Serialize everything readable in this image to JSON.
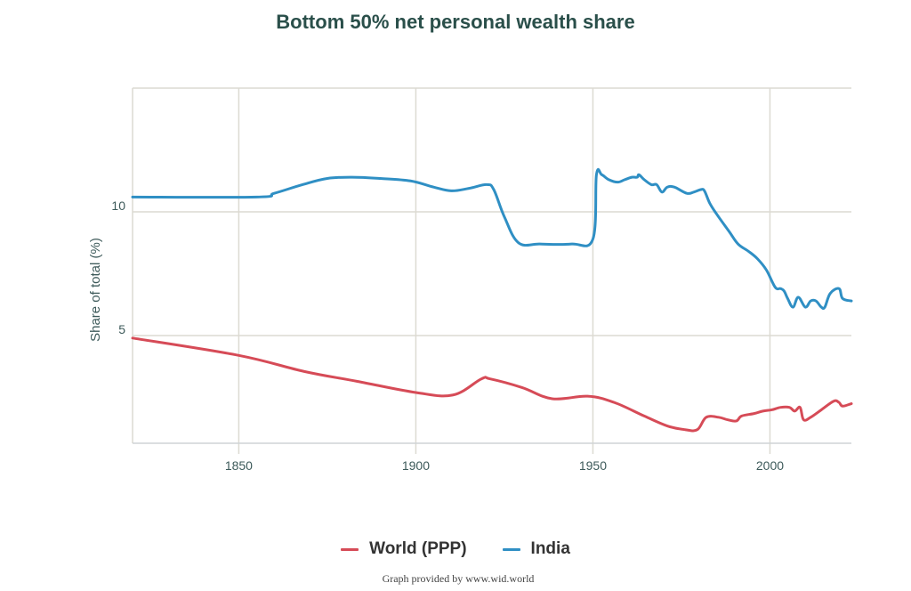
{
  "chart_data": {
    "type": "line",
    "title": "Bottom 50% net personal wealth share",
    "xlabel": "",
    "ylabel": "Share of total (%)",
    "xlim": [
      1820,
      2023
    ],
    "ylim": [
      0.65,
      15
    ],
    "x_ticks": [
      1850,
      1900,
      1950,
      2000
    ],
    "y_ticks": [
      5,
      10
    ],
    "y_gridlines": [
      5,
      10,
      15
    ],
    "grid": true,
    "legend_position": "bottom-center",
    "series": [
      {
        "name": "World (PPP)",
        "color": "#d64b57",
        "points": [
          [
            1820,
            4.9
          ],
          [
            1850,
            4.2
          ],
          [
            1868.5,
            3.55
          ],
          [
            1883.5,
            3.15
          ],
          [
            1900,
            2.7
          ],
          [
            1910.5,
            2.6
          ],
          [
            1918.5,
            3.25
          ],
          [
            1921,
            3.25
          ],
          [
            1930,
            2.9
          ],
          [
            1938.5,
            2.45
          ],
          [
            1948.5,
            2.55
          ],
          [
            1956,
            2.3
          ],
          [
            1964.5,
            1.75
          ],
          [
            1971,
            1.35
          ],
          [
            1976,
            1.2
          ],
          [
            1979.5,
            1.2
          ],
          [
            1982,
            1.7
          ],
          [
            1985.5,
            1.7
          ],
          [
            1988,
            1.6
          ],
          [
            1990.5,
            1.55
          ],
          [
            1992,
            1.75
          ],
          [
            1995.5,
            1.85
          ],
          [
            1998,
            1.95
          ],
          [
            2000.5,
            2.0
          ],
          [
            2003,
            2.1
          ],
          [
            2005.5,
            2.1
          ],
          [
            2007,
            1.95
          ],
          [
            2008.5,
            2.1
          ],
          [
            2009.5,
            1.6
          ],
          [
            2011.5,
            1.7
          ],
          [
            2014.5,
            2.0
          ],
          [
            2018,
            2.35
          ],
          [
            2019.5,
            2.3
          ],
          [
            2020.5,
            2.15
          ],
          [
            2023,
            2.25
          ]
        ]
      },
      {
        "name": "India",
        "color": "#2f8fc4",
        "points": [
          [
            1820,
            10.6
          ],
          [
            1855,
            10.6
          ],
          [
            1860,
            10.75
          ],
          [
            1868,
            11.1
          ],
          [
            1875,
            11.35
          ],
          [
            1882,
            11.4
          ],
          [
            1890,
            11.35
          ],
          [
            1898.5,
            11.25
          ],
          [
            1905,
            11.0
          ],
          [
            1910,
            10.85
          ],
          [
            1915,
            10.95
          ],
          [
            1920,
            11.1
          ],
          [
            1922,
            10.9
          ],
          [
            1925,
            9.8
          ],
          [
            1929,
            8.75
          ],
          [
            1935,
            8.7
          ],
          [
            1944,
            8.7
          ],
          [
            1950,
            8.9
          ],
          [
            1951,
            11.5
          ],
          [
            1952.5,
            11.5
          ],
          [
            1954.5,
            11.3
          ],
          [
            1957,
            11.2
          ],
          [
            1959,
            11.3
          ],
          [
            1961,
            11.4
          ],
          [
            1962.5,
            11.4
          ],
          [
            1963,
            11.5
          ],
          [
            1964.5,
            11.3
          ],
          [
            1966.5,
            11.1
          ],
          [
            1968,
            11.1
          ],
          [
            1969.5,
            10.8
          ],
          [
            1971,
            11.0
          ],
          [
            1973,
            11.0
          ],
          [
            1976.5,
            10.75
          ],
          [
            1978.5,
            10.8
          ],
          [
            1980.5,
            10.9
          ],
          [
            1981.5,
            10.85
          ],
          [
            1983,
            10.35
          ],
          [
            1985,
            9.9
          ],
          [
            1988.5,
            9.2
          ],
          [
            1991,
            8.7
          ],
          [
            1994,
            8.4
          ],
          [
            1996.5,
            8.1
          ],
          [
            1999,
            7.65
          ],
          [
            2001.5,
            6.95
          ],
          [
            2003,
            6.9
          ],
          [
            2004,
            6.8
          ],
          [
            2005,
            6.5
          ],
          [
            2006.5,
            6.15
          ],
          [
            2008,
            6.55
          ],
          [
            2010,
            6.15
          ],
          [
            2011.5,
            6.4
          ],
          [
            2013,
            6.4
          ],
          [
            2014.5,
            6.15
          ],
          [
            2015.5,
            6.15
          ],
          [
            2017,
            6.7
          ],
          [
            2019.5,
            6.9
          ],
          [
            2020.5,
            6.5
          ],
          [
            2023,
            6.4
          ]
        ]
      }
    ],
    "footer": "Graph provided by www.wid.world"
  }
}
